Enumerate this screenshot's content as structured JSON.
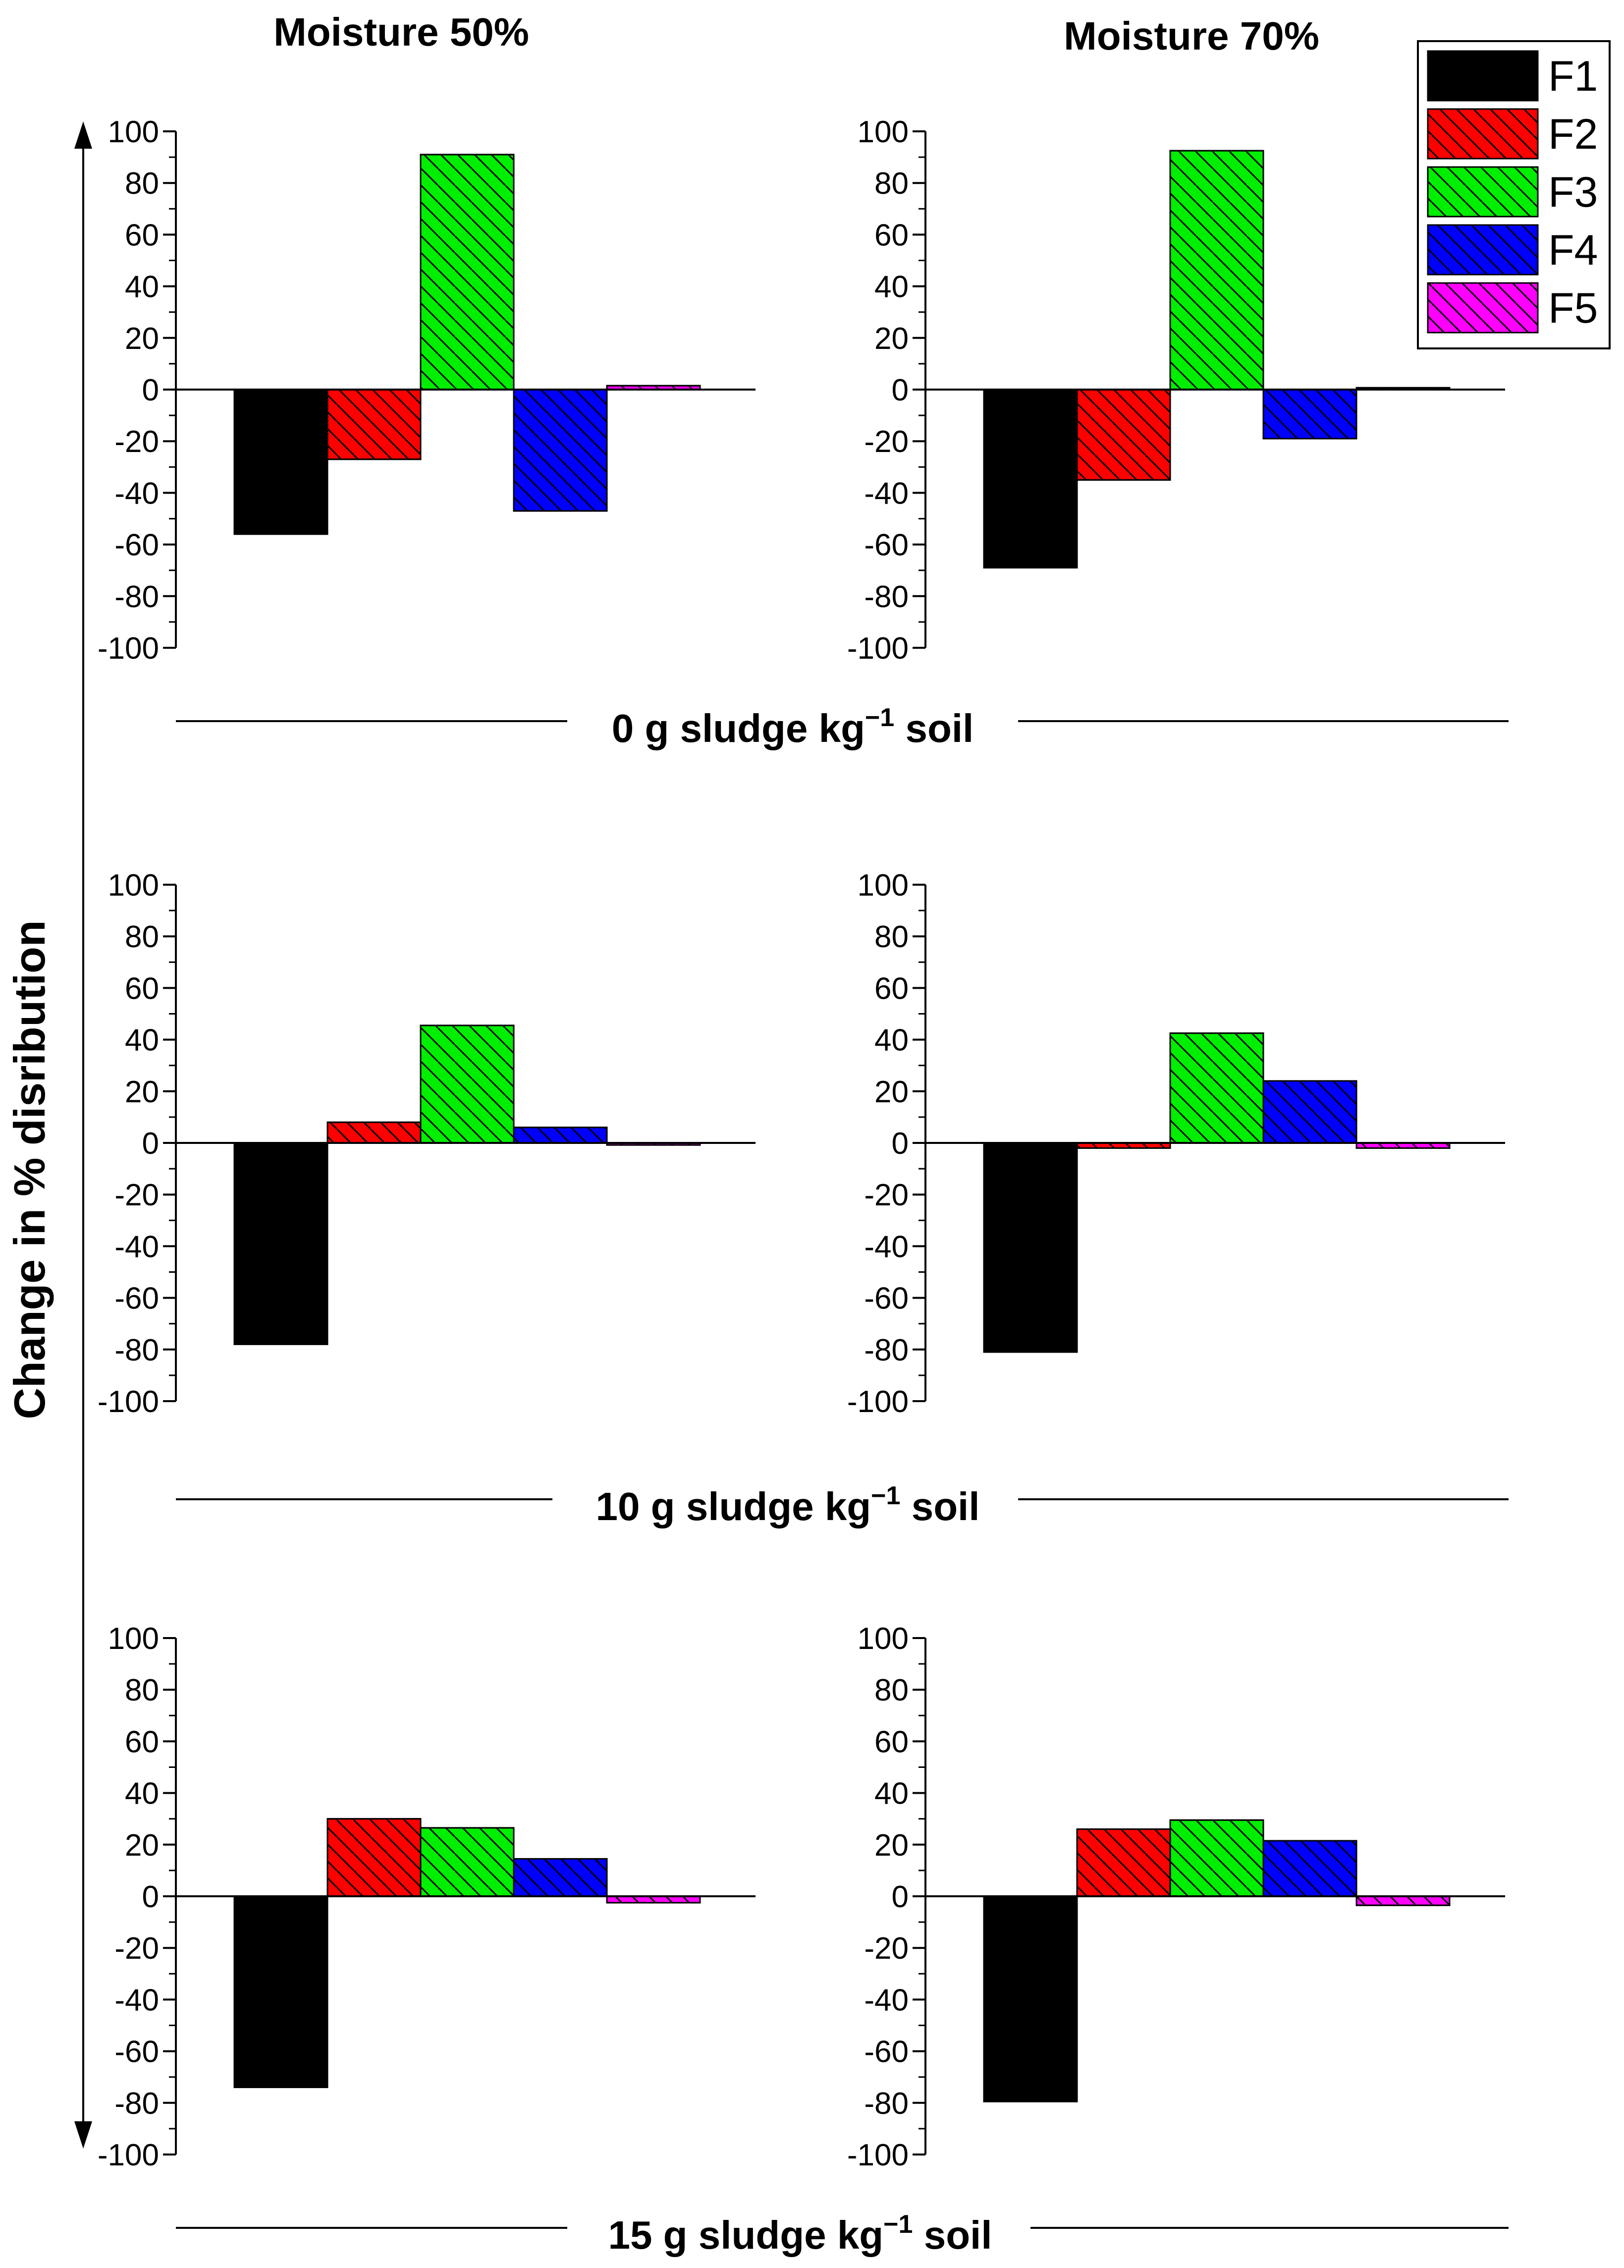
{
  "column_titles": [
    "Moisture 50%",
    "Moisture 70%"
  ],
  "row_labels": [
    {
      "main": "0 g sludge kg",
      "sup": "−1",
      "tail": " soil"
    },
    {
      "main": "10 g sludge kg",
      "sup": "−1",
      "tail": " soil"
    },
    {
      "main": "15 g sludge kg",
      "sup": "−1",
      "tail": " soil"
    }
  ],
  "ylabel": "Change in % disribution",
  "legend": [
    {
      "name": "F1",
      "color": "#000000"
    },
    {
      "name": "F2",
      "color": "#ff0000"
    },
    {
      "name": "F3",
      "color": "#00ee00"
    },
    {
      "name": "F4",
      "color": "#0000ff"
    },
    {
      "name": "F5",
      "color": "#ff00ff"
    }
  ],
  "chart_data": [
    {
      "type": "bar",
      "moisture": "Moisture 50%",
      "sludge": "0 g sludge kg−1 soil",
      "categories": [
        "F1",
        "F2",
        "F3",
        "F4",
        "F5"
      ],
      "values": [
        -56,
        -27,
        91,
        -47,
        1.5
      ],
      "ylim": [
        -100,
        100
      ],
      "yticks": [
        100,
        80,
        60,
        40,
        20,
        0,
        -20,
        -40,
        -60,
        -80,
        -100
      ]
    },
    {
      "type": "bar",
      "moisture": "Moisture 70%",
      "sludge": "0 g sludge kg−1 soil",
      "categories": [
        "F1",
        "F2",
        "F3",
        "F4",
        "F5"
      ],
      "values": [
        -69,
        -35,
        92.5,
        -19,
        0.7
      ],
      "ylim": [
        -100,
        100
      ],
      "yticks": [
        100,
        80,
        60,
        40,
        20,
        0,
        -20,
        -40,
        -60,
        -80,
        -100
      ]
    },
    {
      "type": "bar",
      "moisture": "Moisture 50%",
      "sludge": "10 g sludge kg−1 soil",
      "categories": [
        "F1",
        "F2",
        "F3",
        "F4",
        "F5"
      ],
      "values": [
        -78,
        8,
        45.5,
        6,
        -0.8
      ],
      "ylim": [
        -100,
        100
      ],
      "yticks": [
        100,
        80,
        60,
        40,
        20,
        0,
        -20,
        -40,
        -60,
        -80,
        -100
      ]
    },
    {
      "type": "bar",
      "moisture": "Moisture 70%",
      "sludge": "10 g sludge kg−1 soil",
      "categories": [
        "F1",
        "F2",
        "F3",
        "F4",
        "F5"
      ],
      "values": [
        -81,
        -2,
        42.5,
        24,
        -2
      ],
      "ylim": [
        -100,
        100
      ],
      "yticks": [
        100,
        80,
        60,
        40,
        20,
        0,
        -20,
        -40,
        -60,
        -80,
        -100
      ]
    },
    {
      "type": "bar",
      "moisture": "Moisture 50%",
      "sludge": "15 g sludge kg−1 soil",
      "categories": [
        "F1",
        "F2",
        "F3",
        "F4",
        "F5"
      ],
      "values": [
        -74,
        30,
        26.5,
        14.5,
        -2.5
      ],
      "ylim": [
        -100,
        100
      ],
      "yticks": [
        100,
        80,
        60,
        40,
        20,
        0,
        -20,
        -40,
        -60,
        -80,
        -100
      ]
    },
    {
      "type": "bar",
      "moisture": "Moisture 70%",
      "sludge": "15 g sludge kg−1 soil",
      "categories": [
        "F1",
        "F2",
        "F3",
        "F4",
        "F5"
      ],
      "values": [
        -79.5,
        26,
        29.5,
        21.5,
        -3.5
      ],
      "ylim": [
        -100,
        100
      ],
      "yticks": [
        100,
        80,
        60,
        40,
        20,
        0,
        -20,
        -40,
        -60,
        -80,
        -100
      ]
    }
  ]
}
